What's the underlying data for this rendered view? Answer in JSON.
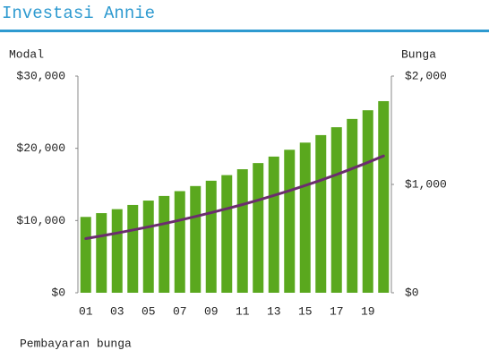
{
  "chart_data": {
    "type": "bar_line",
    "title": "Investasi Annie",
    "ylabel": "Modal",
    "y2label": "Bunga",
    "footer": "Pembayaran bunga",
    "categories": [
      "01",
      null,
      "03",
      null,
      "05",
      null,
      "07",
      null,
      "09",
      null,
      "11",
      null,
      "13",
      null,
      "15",
      null,
      "17",
      null,
      "19",
      null
    ],
    "series": [
      {
        "type": "bar",
        "color": "#5aa81e",
        "values": [
          10500,
          11025,
          11576,
          12155,
          12763,
          13401,
          14071,
          14775,
          15513,
          16289,
          17103,
          17959,
          18856,
          19799,
          20789,
          21829,
          22920,
          24066,
          25270,
          26533
        ]
      },
      {
        "type": "line",
        "axis": "y2",
        "color": "#6b2d6e",
        "values": [
          500,
          525,
          551,
          579,
          608,
          638,
          670,
          704,
          739,
          776,
          814,
          855,
          898,
          943,
          990,
          1039,
          1091,
          1146,
          1203,
          1263
        ]
      }
    ],
    "ylim": [
      0,
      30000
    ],
    "yticks": [
      {
        "value": 0,
        "label": "$0"
      },
      {
        "value": 10000,
        "label": "$10,000"
      },
      {
        "value": 20000,
        "label": "$20,000"
      },
      {
        "value": 30000,
        "label": "$30,000"
      }
    ],
    "y2lim": [
      0,
      2000
    ],
    "y2ticks": [
      {
        "value": 0,
        "label": "$0"
      },
      {
        "value": 1000,
        "label": "$1,000"
      },
      {
        "value": 2000,
        "label": "$2,000"
      }
    ],
    "grid": false
  }
}
